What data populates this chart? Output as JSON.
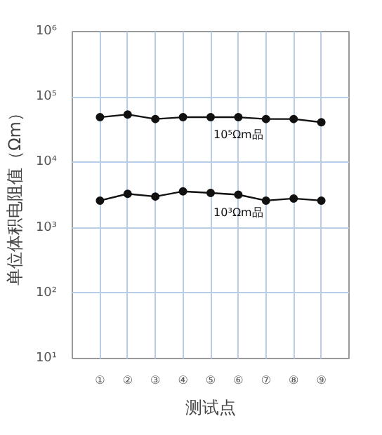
{
  "chart_data": {
    "type": "line",
    "ylabel": "单位体积电阻值（Ωm）",
    "xlabel": "测试点",
    "categories": [
      "①",
      "②",
      "③",
      "④",
      "⑤",
      "⑥",
      "⑦",
      "⑧",
      "⑨"
    ],
    "series": [
      {
        "name": "10⁵Ωm品",
        "color": "#111111",
        "values": [
          49000,
          54000,
          46000,
          49000,
          49000,
          49000,
          46000,
          46000,
          41000
        ]
      },
      {
        "name": "10³Ωm品",
        "color": "#111111",
        "values": [
          2600,
          3300,
          3000,
          3600,
          3400,
          3200,
          2600,
          2800,
          2600
        ]
      }
    ],
    "log": "y",
    "ylim": [
      10,
      1000000
    ],
    "yticks": [
      {
        "value": 10,
        "label": "10¹"
      },
      {
        "value": 100,
        "label": "10²"
      },
      {
        "value": 1000,
        "label": "10³"
      },
      {
        "value": 10000,
        "label": "10⁴"
      },
      {
        "value": 100000,
        "label": "10⁵"
      },
      {
        "value": 1000000,
        "label": "10⁶"
      }
    ],
    "grid": true,
    "marker": "circle",
    "line_style": "solid"
  }
}
